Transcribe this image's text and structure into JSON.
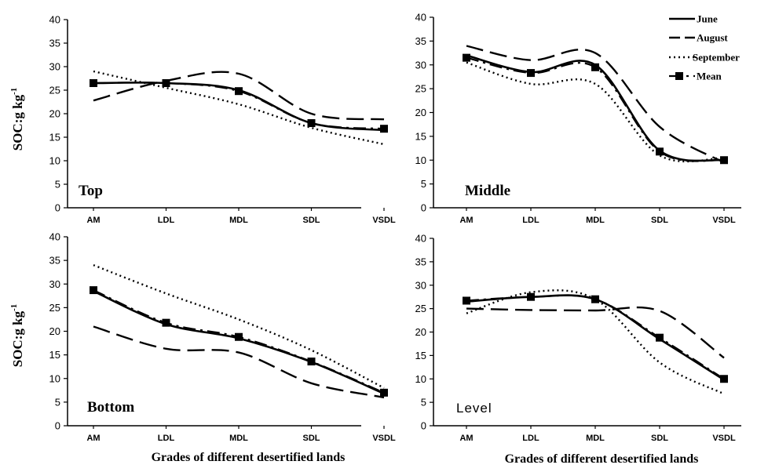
{
  "figure": {
    "xlabel": "Grades of different desertified lands",
    "ylabel_main": "SOC:g kg",
    "ylabel_sup": "-1"
  },
  "legend": [
    "June",
    "August",
    "September",
    "Mean"
  ],
  "chart_data": [
    {
      "type": "line",
      "title": "Top",
      "categories": [
        "AM",
        "LDL",
        "MDL",
        "SDL",
        "VSDL"
      ],
      "ylim": [
        0,
        40
      ],
      "yticks": [
        0,
        5,
        10,
        15,
        20,
        25,
        30,
        35,
        40
      ],
      "series": [
        {
          "name": "June",
          "values": [
            26.5,
            26.5,
            25,
            18,
            16.5
          ]
        },
        {
          "name": "August",
          "values": [
            22.8,
            27,
            28.5,
            20,
            18.8
          ]
        },
        {
          "name": "September",
          "values": [
            29,
            25.5,
            22,
            17,
            13.5
          ]
        },
        {
          "name": "Mean",
          "values": [
            26.5,
            26.5,
            24.8,
            18,
            16.8
          ]
        }
      ]
    },
    {
      "type": "line",
      "title": "Middle",
      "categories": [
        "AM",
        "LDL",
        "MDL",
        "SDL",
        "VSDL"
      ],
      "ylim": [
        0,
        40
      ],
      "yticks": [
        0,
        5,
        10,
        15,
        20,
        25,
        30,
        35,
        40
      ],
      "series": [
        {
          "name": "June",
          "values": [
            32,
            28.5,
            30,
            12,
            10
          ]
        },
        {
          "name": "August",
          "values": [
            34,
            31,
            32.5,
            17,
            9.5
          ]
        },
        {
          "name": "September",
          "values": [
            30.5,
            26,
            26,
            11,
            10.5
          ]
        },
        {
          "name": "Mean",
          "values": [
            31.5,
            28.3,
            29.5,
            11.8,
            10
          ]
        }
      ]
    },
    {
      "type": "line",
      "title": "Bottom",
      "categories": [
        "AM",
        "LDL",
        "MDL",
        "SDL",
        "VSDL"
      ],
      "ylim": [
        0,
        40
      ],
      "yticks": [
        0,
        5,
        10,
        15,
        20,
        25,
        30,
        35,
        40
      ],
      "series": [
        {
          "name": "June",
          "values": [
            28.5,
            21.5,
            18.5,
            13.5,
            6.8
          ]
        },
        {
          "name": "August",
          "values": [
            21,
            16.3,
            15.5,
            9,
            6
          ]
        },
        {
          "name": "September",
          "values": [
            34,
            28,
            22.5,
            16,
            8
          ]
        },
        {
          "name": "Mean",
          "values": [
            28.7,
            21.8,
            18.8,
            13.6,
            7
          ]
        }
      ]
    },
    {
      "type": "line",
      "title": "Level",
      "categories": [
        "AM",
        "LDL",
        "MDL",
        "SDL",
        "VSDL"
      ],
      "ylim": [
        0,
        40
      ],
      "yticks": [
        0,
        5,
        10,
        15,
        20,
        25,
        30,
        35,
        40
      ],
      "series": [
        {
          "name": "June",
          "values": [
            26.5,
            27.5,
            27,
            18.5,
            9.8
          ]
        },
        {
          "name": "August",
          "values": [
            25,
            24.7,
            24.6,
            24.5,
            14.5
          ]
        },
        {
          "name": "September",
          "values": [
            24,
            28.5,
            27,
            13.5,
            6.8
          ]
        },
        {
          "name": "Mean",
          "values": [
            26.7,
            27.5,
            27,
            18.8,
            10
          ]
        }
      ]
    }
  ]
}
